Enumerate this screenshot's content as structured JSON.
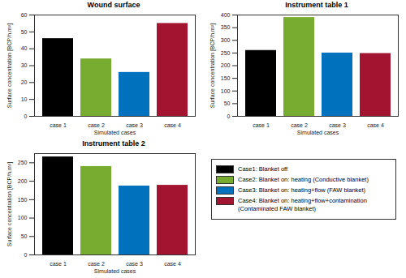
{
  "chart_data": [
    {
      "type": "bar",
      "title": "Wound surface",
      "x_label": "Simulated cases",
      "y_label": "Surface concentration [BCP/h.m²]",
      "categories": [
        "case 1",
        "case 2",
        "case 3",
        "case 4"
      ],
      "values": [
        46,
        34,
        26,
        55
      ],
      "colors": [
        "#000000",
        "#77ac30",
        "#0072bd",
        "#a2142f"
      ],
      "ylim": [
        0,
        60
      ],
      "yticks": [
        0,
        10,
        20,
        30,
        40,
        50,
        60
      ],
      "grid": false
    },
    {
      "type": "bar",
      "title": "Instrument table 1",
      "x_label": "Simulated cases",
      "y_label": "Surface concentration [BCP/h.m²]",
      "categories": [
        "case 1",
        "case 2",
        "case 3",
        "case 4"
      ],
      "values": [
        260,
        390,
        250,
        248
      ],
      "colors": [
        "#000000",
        "#77ac30",
        "#0072bd",
        "#a2142f"
      ],
      "ylim": [
        0,
        400
      ],
      "yticks": [
        0,
        50,
        100,
        150,
        200,
        250,
        300,
        350,
        400
      ],
      "grid": false
    },
    {
      "type": "bar",
      "title": "Instrument table 2",
      "x_label": "Simulated cases",
      "y_label": "Surface concentration [BCP/h.m²]",
      "categories": [
        "case 1",
        "case 2",
        "case 3",
        "case 4"
      ],
      "values": [
        266,
        240,
        187,
        189
      ],
      "colors": [
        "#000000",
        "#77ac30",
        "#0072bd",
        "#a2142f"
      ],
      "ylim": [
        0,
        275
      ],
      "yticks": [
        0,
        50,
        100,
        150,
        200,
        250
      ],
      "grid": false
    }
  ],
  "shared_legend": {
    "entries": [
      {
        "label": "Case1: Blanket off",
        "color": "#000000"
      },
      {
        "label": "Case2: Blanket on: heating (Conductive blanket)",
        "color": "#77ac30"
      },
      {
        "label": "Case3: Blanket on: heating+flow (FAW blanket)",
        "color": "#0072bd"
      },
      {
        "label": "Case4: Blanket on: heating+flow+contamination (Contaminated FAW blanket)",
        "color": "#a2142f"
      }
    ]
  }
}
